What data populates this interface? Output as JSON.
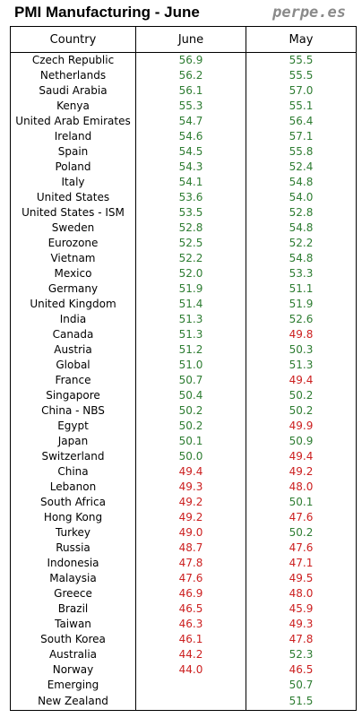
{
  "header": {
    "title": "PMI Manufacturing - June",
    "brand": "perpe.es"
  },
  "columns": [
    "Country",
    "June",
    "May"
  ],
  "colors": {
    "above_50": "#2e7d32",
    "below_50": "#cc1f1f"
  },
  "rows": [
    {
      "country": "Czech Republic",
      "june": "56.9",
      "may": "55.5"
    },
    {
      "country": "Netherlands",
      "june": "56.2",
      "may": "55.5"
    },
    {
      "country": "Saudi Arabia",
      "june": "56.1",
      "may": "57.0"
    },
    {
      "country": "Kenya",
      "june": "55.3",
      "may": "55.1"
    },
    {
      "country": "United Arab Emirates",
      "june": "54.7",
      "may": "56.4"
    },
    {
      "country": "Ireland",
      "june": "54.6",
      "may": "57.1"
    },
    {
      "country": "Spain",
      "june": "54.5",
      "may": "55.8"
    },
    {
      "country": "Poland",
      "june": "54.3",
      "may": "52.4"
    },
    {
      "country": "Italy",
      "june": "54.1",
      "may": "54.8"
    },
    {
      "country": "United States",
      "june": "53.6",
      "may": "54.0"
    },
    {
      "country": "United States - ISM",
      "june": "53.5",
      "may": "52.8"
    },
    {
      "country": "Sweden",
      "june": "52.8",
      "may": "54.8"
    },
    {
      "country": "Eurozone",
      "june": "52.5",
      "may": "52.2"
    },
    {
      "country": "Vietnam",
      "june": "52.2",
      "may": "54.8"
    },
    {
      "country": "Mexico",
      "june": "52.0",
      "may": "53.3"
    },
    {
      "country": "Germany",
      "june": "51.9",
      "may": "51.1"
    },
    {
      "country": "United Kingdom",
      "june": "51.4",
      "may": "51.9"
    },
    {
      "country": "India",
      "june": "51.3",
      "may": "52.6"
    },
    {
      "country": "Canada",
      "june": "51.3",
      "may": "49.8"
    },
    {
      "country": "Austria",
      "june": "51.2",
      "may": "50.3"
    },
    {
      "country": "Global",
      "june": "51.0",
      "may": "51.3"
    },
    {
      "country": "France",
      "june": "50.7",
      "may": "49.4"
    },
    {
      "country": "Singapore",
      "june": "50.4",
      "may": "50.2"
    },
    {
      "country": "China - NBS",
      "june": "50.2",
      "may": "50.2"
    },
    {
      "country": "Egypt",
      "june": "50.2",
      "may": "49.9"
    },
    {
      "country": "Japan",
      "june": "50.1",
      "may": "50.9"
    },
    {
      "country": "Switzerland",
      "june": "50.0",
      "may": "49.4"
    },
    {
      "country": "China",
      "june": "49.4",
      "may": "49.2"
    },
    {
      "country": "Lebanon",
      "june": "49.3",
      "may": "48.0"
    },
    {
      "country": "South Africa",
      "june": "49.2",
      "may": "50.1"
    },
    {
      "country": "Hong Kong",
      "june": "49.2",
      "may": "47.6"
    },
    {
      "country": "Turkey",
      "june": "49.0",
      "may": "50.2"
    },
    {
      "country": "Russia",
      "june": "48.7",
      "may": "47.6"
    },
    {
      "country": "Indonesia",
      "june": "47.8",
      "may": "47.1"
    },
    {
      "country": "Malaysia",
      "june": "47.6",
      "may": "49.5"
    },
    {
      "country": "Greece",
      "june": "46.9",
      "may": "48.0"
    },
    {
      "country": "Brazil",
      "june": "46.5",
      "may": "45.9"
    },
    {
      "country": "Taiwan",
      "june": "46.3",
      "may": "49.3"
    },
    {
      "country": "South Korea",
      "june": "46.1",
      "may": "47.8"
    },
    {
      "country": "Australia",
      "june": "44.2",
      "may": "52.3"
    },
    {
      "country": "Norway",
      "june": "44.0",
      "may": "46.5"
    },
    {
      "country": "Emerging",
      "june": "",
      "may": "50.7"
    },
    {
      "country": "New Zealand",
      "june": "",
      "may": "51.5"
    }
  ]
}
